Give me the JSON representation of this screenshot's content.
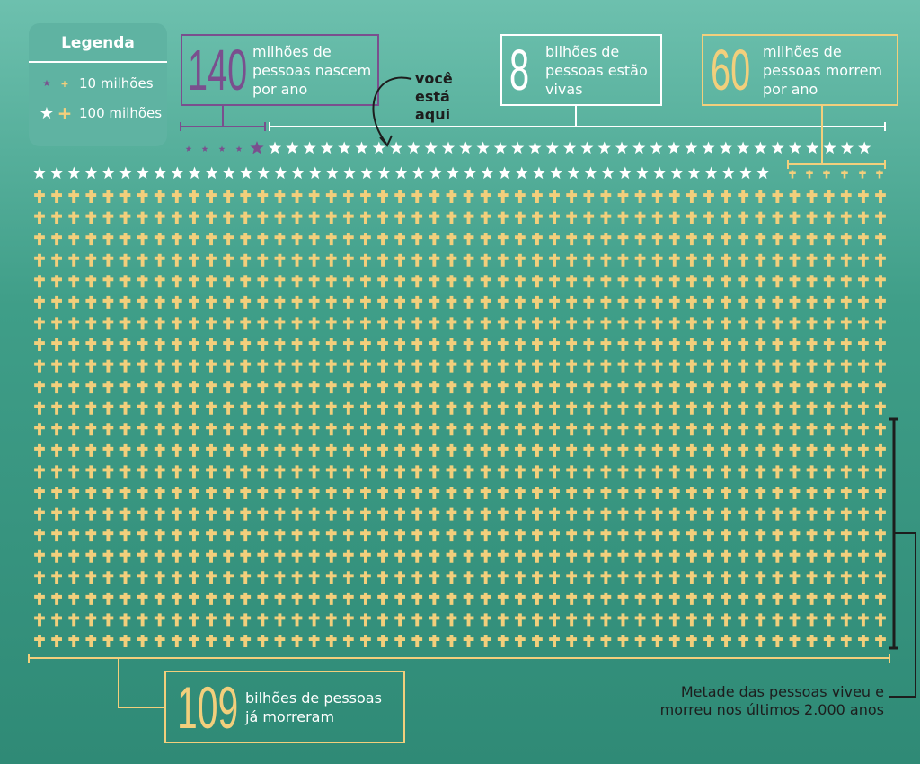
{
  "legend": {
    "title": "Legenda",
    "row1": "10 milhões",
    "row2": "100 milhões"
  },
  "births": {
    "number": "140",
    "text": "milhões de pessoas nascem por ano",
    "color": "#7a4f8e"
  },
  "alive": {
    "number": "8",
    "text": "bilhões de pessoas estão vivas",
    "color": "#ffffff"
  },
  "deaths": {
    "number": "60",
    "text": "milhões de pessoas morrem por ano",
    "color": "#f2cf7c"
  },
  "dead_total": {
    "number": "109",
    "text": "bilhões de pessoas já morreram",
    "color": "#f2cf7c"
  },
  "you_are_here": "você está aqui",
  "half_note": "Metade das pessoas viveu e morreu nos últimos 2.000 anos",
  "icons": {
    "star": "star-icon",
    "cross": "cross-icon"
  },
  "colors": {
    "star": "#ffffff",
    "cross": "#f2cf7c",
    "births": "#7a4f8e",
    "deaths": "#f2cf7c"
  },
  "values": {
    "births_millions": 140,
    "alive_billions": 8,
    "deaths_millions": 60,
    "dead_billions": 109,
    "small_symbol_millions": 10,
    "large_symbol_millions": 100
  }
}
